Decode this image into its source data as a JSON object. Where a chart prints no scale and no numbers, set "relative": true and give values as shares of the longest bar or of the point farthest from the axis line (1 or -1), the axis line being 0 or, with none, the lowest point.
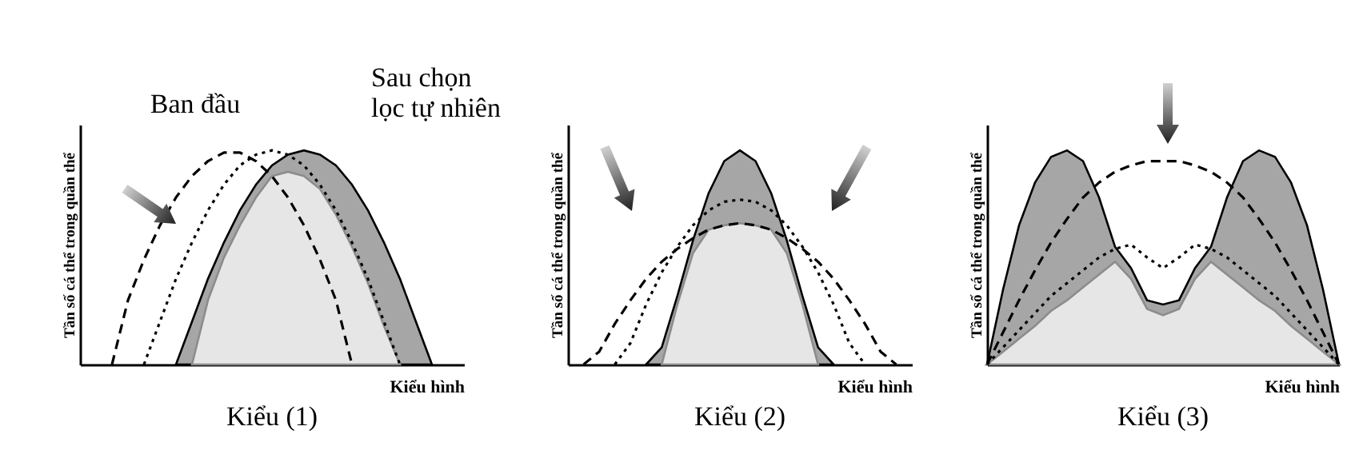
{
  "chart_data": [
    {
      "type": "line",
      "title": "Kiểu (1)",
      "xlabel": "Kiểu hình",
      "ylabel": "Tần số cá thể trong quần thể",
      "relative": true,
      "categories": [
        null,
        null,
        null,
        null,
        null,
        null,
        null,
        null,
        null,
        null,
        null,
        null,
        null,
        null,
        null,
        null,
        null,
        null,
        null,
        null,
        null,
        null,
        null,
        null,
        null
      ],
      "series": [
        {
          "type": "area",
          "name": "Sau chọn\nlọc tự nhiên",
          "color": "#a6a6a6",
          "values": [
            null,
            null,
            null,
            null,
            null,
            null,
            0,
            0.2,
            0.4,
            0.57,
            0.72,
            0.84,
            0.93,
            0.98,
            1,
            0.98,
            0.93,
            0.84,
            0.72,
            0.57,
            0.4,
            0.2,
            0,
            null,
            null
          ]
        },
        {
          "type": "area",
          "color": "#e6e6e6",
          "values": [
            null,
            null,
            null,
            null,
            null,
            null,
            null,
            0,
            0.3,
            0.5,
            0.65,
            0.78,
            0.88,
            0.9,
            0.88,
            0.82,
            0.7,
            0.55,
            0.38,
            0.18,
            0,
            null,
            null,
            null,
            null
          ]
        },
        {
          "name": "Ban đầu",
          "color": "#000000",
          "line_style": "dashed",
          "values": [
            null,
            null,
            0,
            0.3,
            0.49,
            0.65,
            0.78,
            0.88,
            0.95,
            0.99,
            0.99,
            0.95,
            0.88,
            0.78,
            0.65,
            0.49,
            0.3,
            0,
            null,
            null,
            null,
            null,
            null,
            null,
            null
          ]
        },
        {
          "color": "#000000",
          "line_style": "dotted",
          "values": [
            null,
            null,
            null,
            null,
            0,
            0.2,
            0.4,
            0.57,
            0.72,
            0.84,
            0.93,
            0.98,
            1,
            0.98,
            0.93,
            0.84,
            0.72,
            0.57,
            0.4,
            0.2,
            0,
            null,
            null,
            null,
            null
          ]
        }
      ]
    },
    {
      "type": "line",
      "title": "Kiểu (2)",
      "xlabel": "Kiểu hình",
      "ylabel": "Tần số cá thể trong quần thể",
      "relative": true,
      "categories": [
        null,
        null,
        null,
        null,
        null,
        null,
        null,
        null,
        null,
        null,
        null,
        null,
        null,
        null,
        null,
        null,
        null,
        null,
        null,
        null,
        null,
        null,
        null
      ],
      "series": [
        {
          "type": "area",
          "color": "#a6a6a6",
          "values": [
            null,
            null,
            null,
            null,
            null,
            0,
            0.08,
            0.32,
            0.58,
            0.8,
            0.95,
            1,
            0.95,
            0.8,
            0.58,
            0.32,
            0.08,
            0,
            null,
            null,
            null,
            null,
            null
          ]
        },
        {
          "type": "area",
          "color": "#e6e6e6",
          "values": [
            null,
            null,
            null,
            null,
            null,
            null,
            0,
            0.28,
            0.52,
            0.63,
            0.65,
            0.66,
            0.65,
            0.63,
            0.52,
            0.28,
            0,
            null,
            null,
            null,
            null,
            null,
            null
          ]
        },
        {
          "color": "#000000",
          "line_style": "dashed",
          "values": [
            null,
            0,
            0.06,
            0.19,
            0.3,
            0.4,
            0.48,
            0.54,
            0.59,
            0.63,
            0.65,
            0.66,
            0.65,
            0.63,
            0.59,
            0.54,
            0.48,
            0.4,
            0.3,
            0.19,
            0.06,
            0,
            null
          ]
        },
        {
          "color": "#000000",
          "line_style": "dotted",
          "values": [
            null,
            null,
            null,
            0,
            0.1,
            0.28,
            0.43,
            0.55,
            0.65,
            0.72,
            0.76,
            0.77,
            0.76,
            0.72,
            0.65,
            0.55,
            0.43,
            0.28,
            0.1,
            0,
            null,
            null,
            null
          ]
        }
      ]
    },
    {
      "type": "line",
      "title": "Kiểu (3)",
      "xlabel": "Kiểu hình",
      "ylabel": "Tần số cá thể trong quần thể",
      "relative": true,
      "categories": [
        null,
        null,
        null,
        null,
        null,
        null,
        null,
        null,
        null,
        null,
        null,
        null,
        null,
        null,
        null,
        null,
        null,
        null,
        null,
        null,
        null,
        null,
        null
      ],
      "series": [
        {
          "type": "area",
          "color": "#a6a6a6",
          "values": [
            0,
            0.35,
            0.65,
            0.85,
            0.97,
            1,
            0.95,
            0.78,
            0.55,
            0.45,
            0.3,
            0.28,
            0.3,
            0.45,
            0.55,
            0.78,
            0.95,
            1,
            0.97,
            0.85,
            0.65,
            0.35,
            0
          ]
        },
        {
          "type": "area",
          "color": "#e6e6e6",
          "values": [
            0,
            0.06,
            0.12,
            0.18,
            0.25,
            0.3,
            0.36,
            0.42,
            0.48,
            0.4,
            0.26,
            0.23,
            0.26,
            0.4,
            0.48,
            0.42,
            0.36,
            0.3,
            0.25,
            0.18,
            0.12,
            0.06,
            0
          ]
        },
        {
          "color": "#000000",
          "line_style": "dashed",
          "values": [
            0,
            0.15,
            0.3,
            0.44,
            0.57,
            0.68,
            0.78,
            0.85,
            0.9,
            0.93,
            0.95,
            0.95,
            0.95,
            0.93,
            0.9,
            0.85,
            0.78,
            0.68,
            0.57,
            0.44,
            0.3,
            0.15,
            0
          ]
        },
        {
          "color": "#000000",
          "line_style": "dotted",
          "values": [
            0,
            0.08,
            0.16,
            0.24,
            0.32,
            0.38,
            0.44,
            0.5,
            0.54,
            0.56,
            0.5,
            0.45,
            0.5,
            0.56,
            0.54,
            0.5,
            0.44,
            0.38,
            0.32,
            0.24,
            0.16,
            0.08,
            0
          ]
        }
      ]
    }
  ]
}
